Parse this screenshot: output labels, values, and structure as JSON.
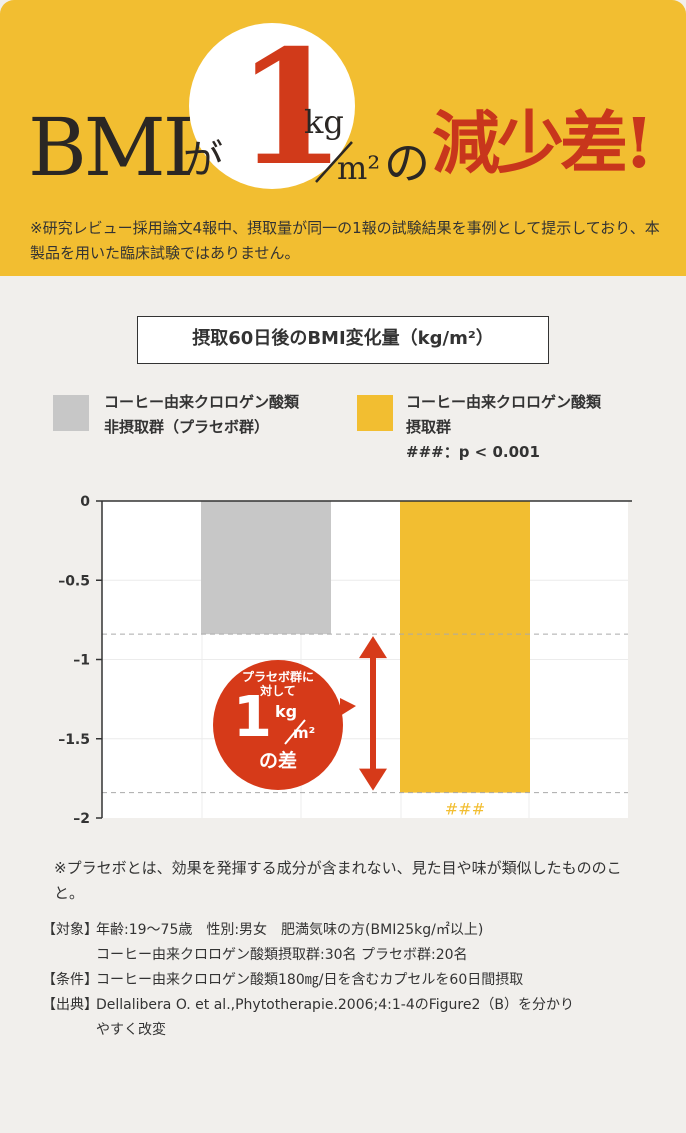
{
  "headline": {
    "bmi": "BMI",
    "ga": "が",
    "value": "1",
    "unit_top": "kg",
    "unit_bottom": "m²",
    "no": "の",
    "emphasis": "減少差!"
  },
  "disclaimer": "※研究レビュー採用論文4報中、摂取量が同一の1報の試験結果を事例として提示しており、本製品を用いた臨床試験ではありません。",
  "chart_title": "摂取60日後のBMI変化量（kg/m²）",
  "legend": [
    {
      "line1": "コーヒー由来クロロゲン酸類",
      "line2": "非摂取群（プラセボ群）",
      "line3": "",
      "color": "#c7c7c7"
    },
    {
      "line1": "コーヒー由来クロロゲン酸類",
      "line2": "摂取群",
      "line3": "###：p < 0.001",
      "color": "#f2be31"
    }
  ],
  "chart_data": {
    "type": "bar",
    "title": "摂取60日後のBMI変化量（kg/m²）",
    "categories": [
      "コーヒー由来クロロゲン酸類非摂取群（プラセボ群）",
      "コーヒー由来クロロゲン酸類摂取群"
    ],
    "values": [
      -0.84,
      -1.84
    ],
    "colors": [
      "#c7c7c7",
      "#f2be31"
    ],
    "ylim": [
      -2,
      0
    ],
    "yticks": [
      0,
      -0.5,
      -1,
      -1.5,
      -2
    ],
    "ytick_labels": [
      "0",
      "–0.5",
      "–1",
      "–1.5",
      "–2"
    ],
    "grid": true,
    "significance_label": "###",
    "annotation": {
      "line1": "プラセボ群に",
      "line2": "対して",
      "value": "1",
      "unit_top": "kg",
      "unit_bottom": "m²",
      "suffix": "の差"
    }
  },
  "footnote": "※プラセボとは、効果を発揮する成分が含まれない、見た目や味が類似したもののこと。",
  "conditions": [
    {
      "label": "【対象】",
      "text": "年齢:19〜75歳　性別:男女　肥満気味の方(BMI25kg/㎡以上)"
    },
    {
      "label": "",
      "text": "コーヒー由来クロロゲン酸類摂取群:30名 プラセボ群:20名"
    },
    {
      "label": "【条件】",
      "text": "コーヒー由来クロロゲン酸類180㎎/日を含むカプセルを60日間摂取"
    },
    {
      "label": "【出典】",
      "text": "Dellalibera O. et al.,Phytotherapie.2006;4:1-4のFigure2（B）を分かり"
    },
    {
      "label": "",
      "text": "やすく改変"
    }
  ]
}
